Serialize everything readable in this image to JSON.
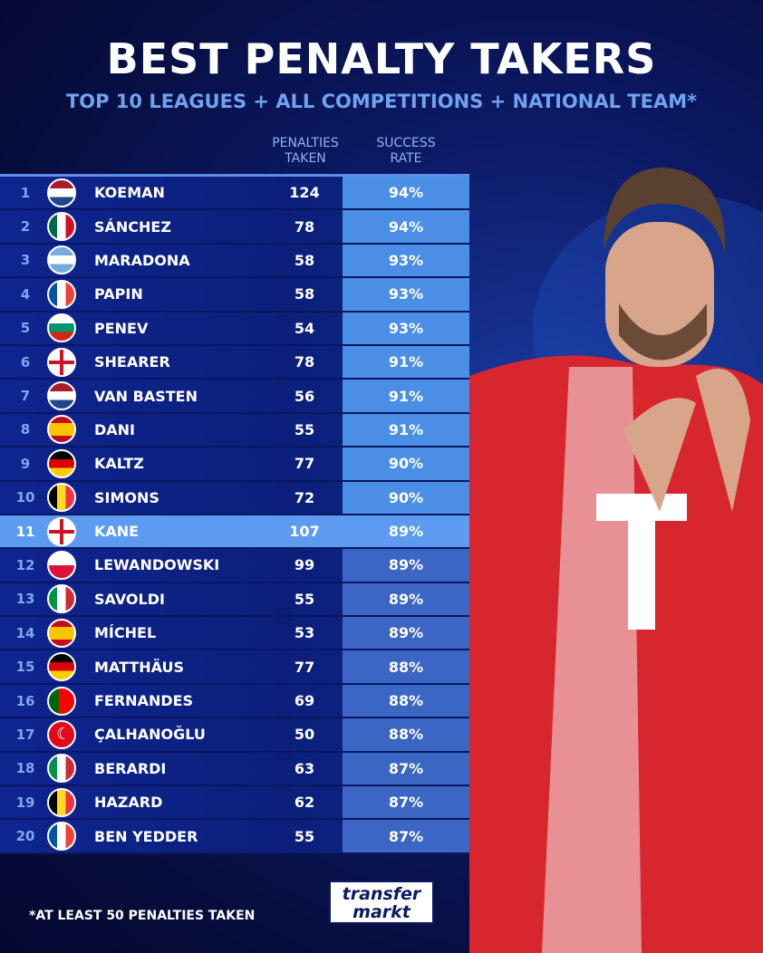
{
  "header": {
    "title": "BEST PENALTY TAKERS",
    "subtitle": "TOP 10 LEAGUES + ALL COMPETITIONS + NATIONAL TEAM*"
  },
  "chart_data": {
    "type": "table",
    "columns": [
      "",
      "",
      "",
      "PENALTIES TAKEN",
      "SUCCESS RATE"
    ],
    "col_taken_1": "PENALTIES",
    "col_taken_2": "TAKEN",
    "col_rate_1": "SUCCESS",
    "col_rate_2": "RATE",
    "highlight_rank": "11",
    "rows": [
      {
        "rank": "1",
        "flag": "nl",
        "name": "KOEMAN",
        "taken": "124",
        "rate": "94%"
      },
      {
        "rank": "2",
        "flag": "mx",
        "name": "SÁNCHEZ",
        "taken": "78",
        "rate": "94%"
      },
      {
        "rank": "3",
        "flag": "ar",
        "name": "MARADONA",
        "taken": "58",
        "rate": "93%"
      },
      {
        "rank": "4",
        "flag": "fr",
        "name": "PAPIN",
        "taken": "58",
        "rate": "93%"
      },
      {
        "rank": "5",
        "flag": "bg",
        "name": "PENEV",
        "taken": "54",
        "rate": "93%"
      },
      {
        "rank": "6",
        "flag": "en",
        "name": "SHEARER",
        "taken": "78",
        "rate": "91%"
      },
      {
        "rank": "7",
        "flag": "nl",
        "name": "VAN BASTEN",
        "taken": "56",
        "rate": "91%"
      },
      {
        "rank": "8",
        "flag": "es",
        "name": "DANI",
        "taken": "55",
        "rate": "91%"
      },
      {
        "rank": "9",
        "flag": "de",
        "name": "KALTZ",
        "taken": "77",
        "rate": "90%"
      },
      {
        "rank": "10",
        "flag": "be",
        "name": "SIMONS",
        "taken": "72",
        "rate": "90%"
      },
      {
        "rank": "11",
        "flag": "en",
        "name": "KANE",
        "taken": "107",
        "rate": "89%"
      },
      {
        "rank": "12",
        "flag": "pl",
        "name": "LEWANDOWSKI",
        "taken": "99",
        "rate": "89%"
      },
      {
        "rank": "13",
        "flag": "it",
        "name": "SAVOLDI",
        "taken": "55",
        "rate": "89%"
      },
      {
        "rank": "14",
        "flag": "es",
        "name": "MÍCHEL",
        "taken": "53",
        "rate": "89%"
      },
      {
        "rank": "15",
        "flag": "de",
        "name": "MATTHÄUS",
        "taken": "77",
        "rate": "88%"
      },
      {
        "rank": "16",
        "flag": "pt",
        "name": "FERNANDES",
        "taken": "69",
        "rate": "88%"
      },
      {
        "rank": "17",
        "flag": "tr",
        "name": "ÇALHANOĞLU",
        "taken": "50",
        "rate": "88%"
      },
      {
        "rank": "18",
        "flag": "it",
        "name": "BERARDI",
        "taken": "63",
        "rate": "87%"
      },
      {
        "rank": "19",
        "flag": "be",
        "name": "HAZARD",
        "taken": "62",
        "rate": "87%"
      },
      {
        "rank": "20",
        "flag": "fr",
        "name": "BEN YEDDER",
        "taken": "55",
        "rate": "87%"
      }
    ]
  },
  "footer": {
    "note": "*AT LEAST 50 PENALTIES TAKEN",
    "logo_1": "transfer",
    "logo_2": "markt"
  },
  "colors": {
    "background": "#0c1a66",
    "highlight": "#5c9bef",
    "rate_top": "#4b8ee6",
    "rate": "#3b66c4"
  }
}
